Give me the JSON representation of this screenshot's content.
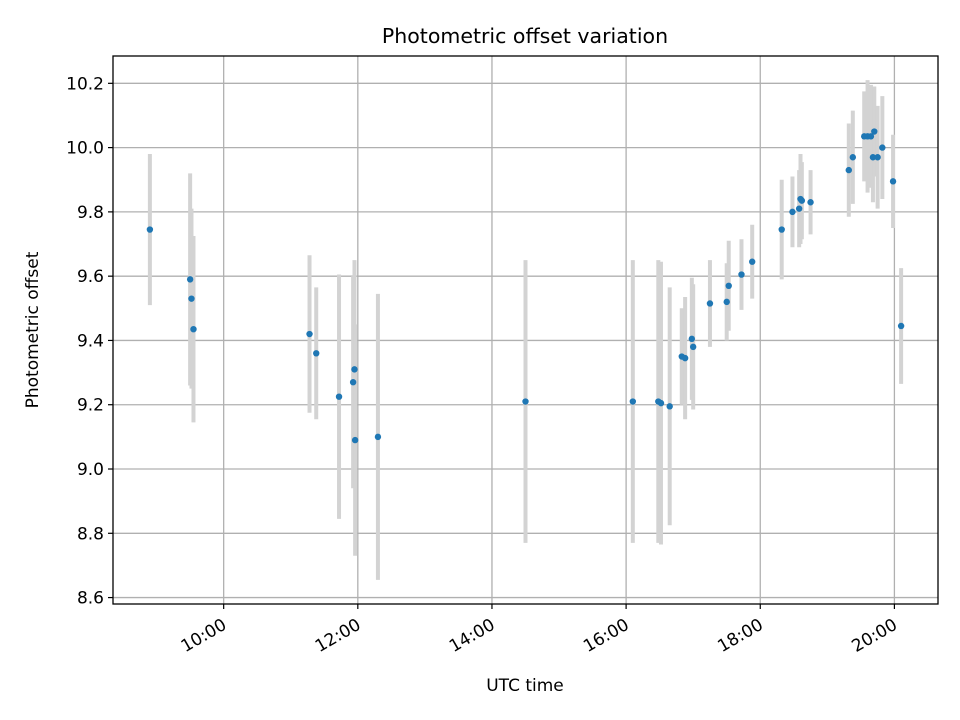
{
  "chart_data": {
    "type": "scatter",
    "title": "Photometric offset variation",
    "xlabel": "UTC time",
    "ylabel": "Photometric offset",
    "x_unit": "hours UTC",
    "xlim": [
      8.35,
      20.65
    ],
    "ylim": [
      8.58,
      10.285
    ],
    "grid": true,
    "x_ticks": [
      {
        "value": 10,
        "label": "10:00"
      },
      {
        "value": 12,
        "label": "12:00"
      },
      {
        "value": 14,
        "label": "14:00"
      },
      {
        "value": 16,
        "label": "16:00"
      },
      {
        "value": 18,
        "label": "18:00"
      },
      {
        "value": 20,
        "label": "20:00"
      }
    ],
    "y_ticks": [
      {
        "value": 8.6,
        "label": "8.6"
      },
      {
        "value": 8.8,
        "label": "8.8"
      },
      {
        "value": 9.0,
        "label": "9.0"
      },
      {
        "value": 9.2,
        "label": "9.2"
      },
      {
        "value": 9.4,
        "label": "9.4"
      },
      {
        "value": 9.6,
        "label": "9.6"
      },
      {
        "value": 9.8,
        "label": "9.8"
      },
      {
        "value": 10.0,
        "label": "10.0"
      },
      {
        "value": 10.2,
        "label": "10.2"
      }
    ],
    "colors": {
      "point": "#1f77b4",
      "errorbar": "#d3d3d3",
      "grid": "#b0b0b0"
    },
    "points": [
      {
        "x": 8.9,
        "y": 9.745,
        "yerr": 0.235
      },
      {
        "x": 9.5,
        "y": 9.59,
        "yerr": 0.33
      },
      {
        "x": 9.52,
        "y": 9.53,
        "yerr": 0.28
      },
      {
        "x": 9.55,
        "y": 9.435,
        "yerr": 0.29
      },
      {
        "x": 11.28,
        "y": 9.42,
        "yerr": 0.245
      },
      {
        "x": 11.38,
        "y": 9.36,
        "yerr": 0.205
      },
      {
        "x": 11.72,
        "y": 9.225,
        "yerr": 0.38
      },
      {
        "x": 11.93,
        "y": 9.27,
        "yerr": 0.33
      },
      {
        "x": 11.95,
        "y": 9.31,
        "yerr": 0.34
      },
      {
        "x": 11.96,
        "y": 9.09,
        "yerr": 0.36
      },
      {
        "x": 12.3,
        "y": 9.1,
        "yerr": 0.445
      },
      {
        "x": 14.5,
        "y": 9.21,
        "yerr": 0.44
      },
      {
        "x": 16.1,
        "y": 9.21,
        "yerr": 0.44
      },
      {
        "x": 16.48,
        "y": 9.21,
        "yerr": 0.44
      },
      {
        "x": 16.52,
        "y": 9.205,
        "yerr": 0.44
      },
      {
        "x": 16.65,
        "y": 9.195,
        "yerr": 0.37
      },
      {
        "x": 16.83,
        "y": 9.35,
        "yerr": 0.15
      },
      {
        "x": 16.88,
        "y": 9.345,
        "yerr": 0.19
      },
      {
        "x": 16.98,
        "y": 9.405,
        "yerr": 0.19
      },
      {
        "x": 17.0,
        "y": 9.38,
        "yerr": 0.195
      },
      {
        "x": 17.25,
        "y": 9.515,
        "yerr": 0.135
      },
      {
        "x": 17.5,
        "y": 9.52,
        "yerr": 0.12
      },
      {
        "x": 17.53,
        "y": 9.57,
        "yerr": 0.14
      },
      {
        "x": 17.72,
        "y": 9.605,
        "yerr": 0.11
      },
      {
        "x": 17.88,
        "y": 9.645,
        "yerr": 0.115
      },
      {
        "x": 18.32,
        "y": 9.745,
        "yerr": 0.155
      },
      {
        "x": 18.48,
        "y": 9.8,
        "yerr": 0.11
      },
      {
        "x": 18.58,
        "y": 9.81,
        "yerr": 0.12
      },
      {
        "x": 18.6,
        "y": 9.84,
        "yerr": 0.14
      },
      {
        "x": 18.62,
        "y": 9.835,
        "yerr": 0.12
      },
      {
        "x": 18.75,
        "y": 9.83,
        "yerr": 0.1
      },
      {
        "x": 19.32,
        "y": 9.93,
        "yerr": 0.145
      },
      {
        "x": 19.38,
        "y": 9.97,
        "yerr": 0.145
      },
      {
        "x": 19.55,
        "y": 10.035,
        "yerr": 0.14
      },
      {
        "x": 19.6,
        "y": 10.035,
        "yerr": 0.175
      },
      {
        "x": 19.65,
        "y": 10.035,
        "yerr": 0.16
      },
      {
        "x": 19.68,
        "y": 9.97,
        "yerr": 0.14
      },
      {
        "x": 19.7,
        "y": 10.05,
        "yerr": 0.14
      },
      {
        "x": 19.75,
        "y": 9.97,
        "yerr": 0.16
      },
      {
        "x": 19.82,
        "y": 10.0,
        "yerr": 0.16
      },
      {
        "x": 19.98,
        "y": 9.895,
        "yerr": 0.145
      },
      {
        "x": 20.1,
        "y": 9.445,
        "yerr": 0.18
      }
    ]
  }
}
